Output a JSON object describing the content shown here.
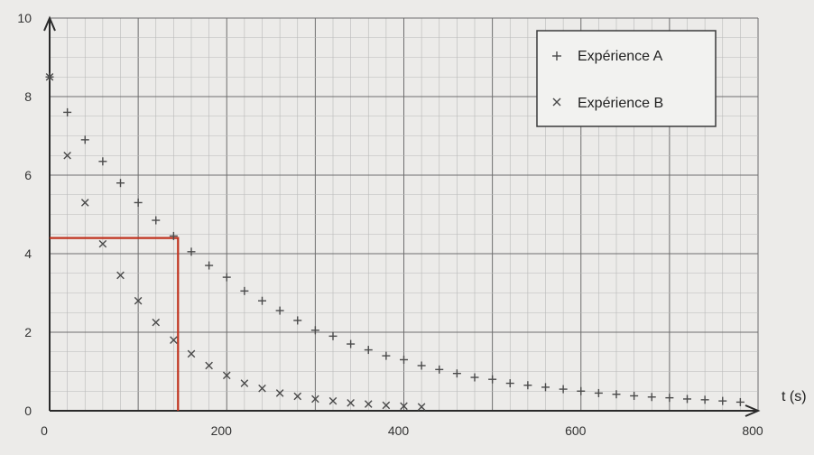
{
  "chart_data": {
    "type": "scatter",
    "title": "",
    "xlabel": "t (s)",
    "ylabel": "",
    "xlim": [
      0,
      800
    ],
    "ylim": [
      0,
      10
    ],
    "x_ticks": [
      0,
      200,
      400,
      600,
      800
    ],
    "y_ticks": [
      0,
      2,
      4,
      6,
      8,
      10
    ],
    "grid": true,
    "legend_position": "top-right",
    "series": [
      {
        "name": "Expérience A",
        "marker": "+",
        "x": [
          0,
          20,
          40,
          60,
          80,
          100,
          120,
          140,
          160,
          180,
          200,
          220,
          240,
          260,
          280,
          300,
          320,
          340,
          360,
          380,
          400,
          420,
          440,
          460,
          480,
          500,
          520,
          540,
          560,
          580,
          600,
          620,
          640,
          660,
          680,
          700,
          720,
          740,
          760,
          780
        ],
        "y": [
          8.5,
          7.6,
          6.9,
          6.35,
          5.8,
          5.3,
          4.85,
          4.45,
          4.05,
          3.7,
          3.4,
          3.05,
          2.8,
          2.55,
          2.3,
          2.05,
          1.9,
          1.7,
          1.55,
          1.4,
          1.3,
          1.15,
          1.05,
          0.95,
          0.85,
          0.8,
          0.7,
          0.65,
          0.6,
          0.55,
          0.5,
          0.45,
          0.42,
          0.38,
          0.35,
          0.33,
          0.3,
          0.28,
          0.25,
          0.22
        ]
      },
      {
        "name": "Expérience B",
        "marker": "x",
        "x": [
          0,
          20,
          40,
          60,
          80,
          100,
          120,
          140,
          160,
          180,
          200,
          220,
          240,
          260,
          280,
          300,
          320,
          340,
          360,
          380,
          400,
          420
        ],
        "y": [
          8.5,
          6.5,
          5.3,
          4.25,
          3.45,
          2.8,
          2.25,
          1.8,
          1.45,
          1.15,
          0.9,
          0.7,
          0.57,
          0.45,
          0.37,
          0.3,
          0.25,
          0.2,
          0.17,
          0.14,
          0.12,
          0.1
        ]
      }
    ],
    "annotations": [
      {
        "type": "guide-lines",
        "x": 145,
        "y": 4.4,
        "color": "#c0331f"
      }
    ]
  }
}
